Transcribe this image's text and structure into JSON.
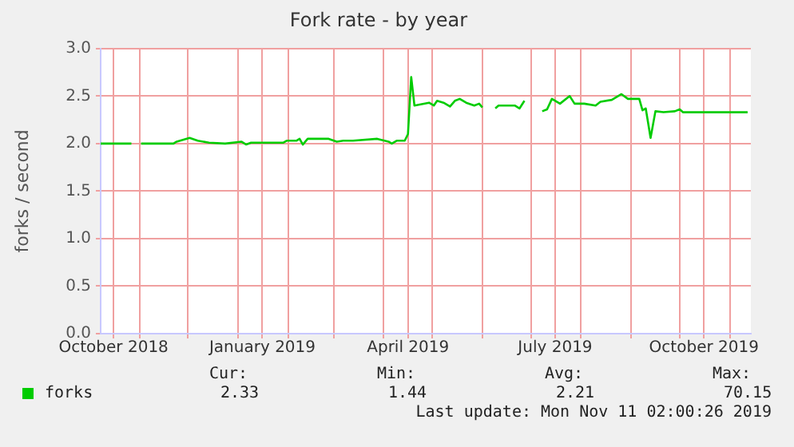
{
  "chart_data": {
    "type": "line",
    "title": "Fork rate - by year",
    "ylabel": "forks / second",
    "x": [
      "2018-10-08",
      "2018-10-27",
      "2018-10-30",
      "2018-11-02",
      "2018-11-22",
      "2018-11-24",
      "2018-12-02",
      "2018-12-07",
      "2018-12-14",
      "2018-12-24",
      "2019-01-03",
      "2019-01-06",
      "2019-01-09",
      "2019-01-29",
      "2019-01-31",
      "2019-02-06",
      "2019-02-08",
      "2019-02-10",
      "2019-02-13",
      "2019-02-26",
      "2019-03-03",
      "2019-03-07",
      "2019-03-13",
      "2019-03-28",
      "2019-04-04",
      "2019-04-06",
      "2019-04-09",
      "2019-04-14",
      "2019-04-16",
      "2019-04-18",
      "2019-04-20",
      "2019-04-29",
      "2019-05-02",
      "2019-05-04",
      "2019-05-08",
      "2019-05-12",
      "2019-05-15",
      "2019-05-18",
      "2019-05-22",
      "2019-05-27",
      "2019-05-30",
      "2019-06-01",
      "2019-06-05",
      "2019-06-09",
      "2019-06-11",
      "2019-06-21",
      "2019-06-24",
      "2019-06-27",
      "2019-07-03",
      "2019-07-08",
      "2019-07-11",
      "2019-07-14",
      "2019-07-19",
      "2019-07-25",
      "2019-07-28",
      "2019-08-03",
      "2019-08-10",
      "2019-08-13",
      "2019-08-20",
      "2019-08-26",
      "2019-08-30",
      "2019-09-06",
      "2019-09-08",
      "2019-09-10",
      "2019-09-13",
      "2019-09-16",
      "2019-09-21",
      "2019-09-28",
      "2019-10-01",
      "2019-10-03",
      "2019-11-12"
    ],
    "series": [
      {
        "name": "forks",
        "color": "#00cc00",
        "values": [
          2.0,
          2.0,
          null,
          2.0,
          2.0,
          2.02,
          2.06,
          2.03,
          2.01,
          2.0,
          2.02,
          1.99,
          2.01,
          2.01,
          2.03,
          2.03,
          2.05,
          1.99,
          2.05,
          2.05,
          2.02,
          2.03,
          2.03,
          2.05,
          2.02,
          2.0,
          2.03,
          2.03,
          2.1,
          2.7,
          2.4,
          2.43,
          2.4,
          2.45,
          2.43,
          2.39,
          2.45,
          2.47,
          2.43,
          2.4,
          2.42,
          2.38,
          null,
          2.37,
          2.4,
          2.4,
          2.37,
          2.45,
          null,
          2.34,
          2.36,
          2.47,
          2.42,
          2.5,
          2.42,
          2.42,
          2.4,
          2.44,
          2.46,
          2.52,
          2.47,
          2.47,
          2.35,
          2.37,
          2.06,
          2.34,
          2.33,
          2.34,
          2.36,
          2.33,
          2.33
        ]
      }
    ],
    "xlim": [
      "2018-10-08",
      "2019-11-14"
    ],
    "xticks": [
      {
        "value": "2018-10-16",
        "label": "October 2018"
      },
      {
        "value": "2018-11-01",
        "label": null
      },
      {
        "value": "2018-12-01",
        "label": null
      },
      {
        "value": "2019-01-01",
        "label": null
      },
      {
        "value": "2019-01-16",
        "label": "January 2019"
      },
      {
        "value": "2019-02-01",
        "label": null
      },
      {
        "value": "2019-03-01",
        "label": null
      },
      {
        "value": "2019-04-01",
        "label": null
      },
      {
        "value": "2019-04-16",
        "label": "April 2019"
      },
      {
        "value": "2019-05-01",
        "label": null
      },
      {
        "value": "2019-06-01",
        "label": null
      },
      {
        "value": "2019-07-01",
        "label": null
      },
      {
        "value": "2019-07-16",
        "label": "July 2019"
      },
      {
        "value": "2019-08-01",
        "label": null
      },
      {
        "value": "2019-09-01",
        "label": null
      },
      {
        "value": "2019-10-01",
        "label": null
      },
      {
        "value": "2019-10-16",
        "label": "October 2019"
      },
      {
        "value": "2019-11-01",
        "label": null
      }
    ],
    "ylim": [
      0,
      3
    ],
    "yticks": [
      {
        "value": 0,
        "label": "0.0"
      },
      {
        "value": 0.5,
        "label": "0.5"
      },
      {
        "value": 1,
        "label": "1.0"
      },
      {
        "value": 1.5,
        "label": "1.5"
      },
      {
        "value": 2,
        "label": "2.0"
      },
      {
        "value": 2.5,
        "label": "2.5"
      },
      {
        "value": 3,
        "label": "3.0"
      }
    ],
    "grid": true,
    "legend": "bottom left",
    "marker": "none",
    "line_style": "solid",
    "annotations": [
      "Cur:",
      "Min:",
      "Avg:",
      "Max:",
      "2.33",
      "1.44",
      "2.21",
      "70.15",
      "Last update: Mon Nov 11 02:00:26 2019"
    ]
  }
}
